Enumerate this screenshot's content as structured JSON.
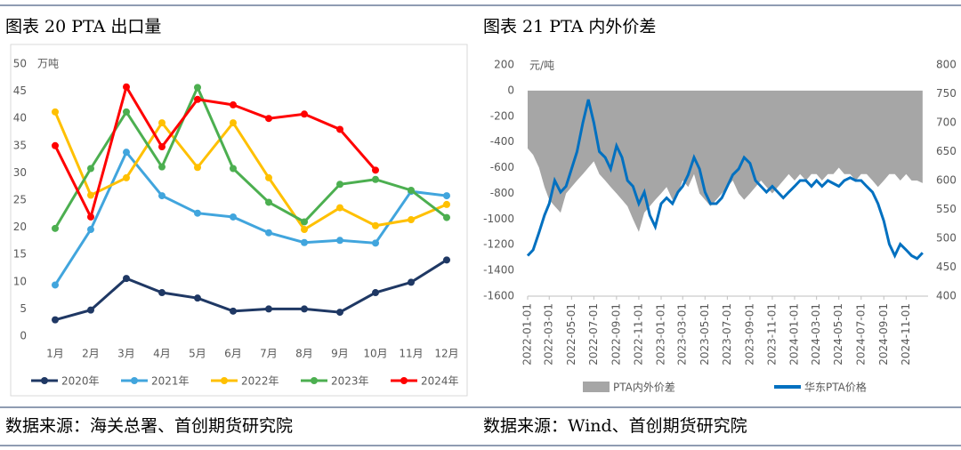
{
  "chart_data": [
    {
      "type": "line",
      "title": "图表 20 PTA 出口量",
      "y_label": "万吨",
      "source": "数据来源：海关总署、首创期货研究院",
      "categories": [
        "1月",
        "2月",
        "3月",
        "4月",
        "5月",
        "6月",
        "7月",
        "8月",
        "9月",
        "10月",
        "11月",
        "12月"
      ],
      "ylim": [
        0,
        50
      ],
      "yticks": [
        0,
        5,
        10,
        15,
        20,
        25,
        30,
        35,
        40,
        45,
        50
      ],
      "grid": false,
      "series": [
        {
          "name": "2020年",
          "color": "#1f3864",
          "values": [
            3.0,
            4.8,
            10.6,
            8.0,
            7.0,
            4.6,
            5.0,
            5.0,
            4.4,
            8.0,
            9.9,
            14.0
          ]
        },
        {
          "name": "2021年",
          "color": "#41a5dd",
          "values": [
            9.4,
            19.6,
            33.8,
            25.8,
            22.6,
            21.9,
            19.0,
            17.2,
            17.6,
            17.1,
            26.6,
            25.8
          ]
        },
        {
          "name": "2022年",
          "color": "#ffc000",
          "values": [
            41.2,
            25.9,
            29.1,
            39.2,
            31.0,
            39.2,
            29.1,
            19.6,
            23.6,
            20.3,
            21.4,
            24.2
          ]
        },
        {
          "name": "2023年",
          "color": "#4caf50",
          "values": [
            19.8,
            30.8,
            41.2,
            31.1,
            45.7,
            30.8,
            24.6,
            21.0,
            27.9,
            28.8,
            26.8,
            21.8
          ]
        },
        {
          "name": "2024年",
          "color": "#ff0000",
          "values": [
            35.0,
            21.9,
            45.8,
            34.8,
            43.5,
            42.5,
            40.0,
            40.8,
            38.0,
            30.5,
            null,
            null
          ]
        }
      ]
    },
    {
      "type": "area_line",
      "title": "图表 21 PTA 内外价差",
      "y_label": "元/吨",
      "source": "数据来源：Wind、首创期货研究院",
      "x": [
        "2022-01-01",
        "2022-01-16",
        "2022-02-01",
        "2022-02-16",
        "2022-03-01",
        "2022-03-16",
        "2022-04-01",
        "2022-04-16",
        "2022-05-01",
        "2022-05-16",
        "2022-06-01",
        "2022-06-16",
        "2022-07-01",
        "2022-07-16",
        "2022-08-01",
        "2022-08-16",
        "2022-09-01",
        "2022-09-16",
        "2022-10-01",
        "2022-10-16",
        "2022-11-01",
        "2022-11-16",
        "2022-12-01",
        "2022-12-16",
        "2023-01-01",
        "2023-01-16",
        "2023-02-01",
        "2023-02-16",
        "2023-03-01",
        "2023-03-16",
        "2023-04-01",
        "2023-04-16",
        "2023-05-01",
        "2023-05-16",
        "2023-06-01",
        "2023-06-16",
        "2023-07-01",
        "2023-07-16",
        "2023-08-01",
        "2023-08-16",
        "2023-09-01",
        "2023-09-16",
        "2023-10-01",
        "2023-10-16",
        "2023-11-01",
        "2023-11-16",
        "2023-12-01",
        "2023-12-16",
        "2024-01-01",
        "2024-01-16",
        "2024-02-01",
        "2024-02-16",
        "2024-03-01",
        "2024-03-16",
        "2024-04-01",
        "2024-04-16",
        "2024-05-01",
        "2024-05-16",
        "2024-06-01",
        "2024-06-16",
        "2024-07-01",
        "2024-07-16",
        "2024-08-01",
        "2024-08-16",
        "2024-09-01",
        "2024-09-16",
        "2024-10-01",
        "2024-10-16",
        "2024-11-01",
        "2024-11-16",
        "2024-12-01",
        "2024-12-16"
      ],
      "xlim": [
        "2022-01-01",
        "2024-12-31"
      ],
      "xticks": [
        "2022-01-01",
        "2022-03-01",
        "2022-05-01",
        "2022-07-01",
        "2022-09-01",
        "2022-11-01",
        "2023-01-01",
        "2023-03-01",
        "2023-05-01",
        "2023-07-01",
        "2023-09-01",
        "2023-11-01",
        "2024-01-01",
        "2024-03-01",
        "2024-05-01",
        "2024-07-01",
        "2024-09-01",
        "2024-11-01"
      ],
      "ylim": [
        -1600,
        200
      ],
      "yticks": [
        -1600,
        -1400,
        -1200,
        -1000,
        -800,
        -600,
        -400,
        -200,
        0,
        200
      ],
      "y2lim": [
        400,
        800
      ],
      "y2ticks": [
        400,
        450,
        500,
        550,
        600,
        650,
        700,
        750,
        800
      ],
      "series": [
        {
          "name": "PTA内外价差",
          "color": "#a6a6a6",
          "values": [
            -450,
            -500,
            -600,
            -750,
            -850,
            -900,
            -950,
            -800,
            -750,
            -700,
            -650,
            -600,
            -550,
            -650,
            -700,
            -750,
            -800,
            -850,
            -900,
            -1000,
            -1100,
            -950,
            -900,
            -850,
            -800,
            -750,
            -850,
            -800,
            -700,
            -750,
            -650,
            -800,
            -850,
            -900,
            -850,
            -800,
            -750,
            -700,
            -800,
            -850,
            -800,
            -750,
            -700,
            -750,
            -800,
            -750,
            -700,
            -650,
            -700,
            -650,
            -700,
            -650,
            -650,
            -700,
            -650,
            -650,
            -600,
            -650,
            -650,
            -700,
            -650,
            -650,
            -700,
            -750,
            -700,
            -650,
            -650,
            -700,
            -650,
            -700,
            -700,
            -720
          ]
        },
        {
          "name": "华东PTA价格",
          "color": "#0070c0",
          "axis": "y2",
          "values": [
            470,
            480,
            510,
            540,
            560,
            600,
            580,
            590,
            620,
            650,
            700,
            740,
            700,
            650,
            640,
            620,
            660,
            640,
            600,
            590,
            560,
            580,
            540,
            520,
            560,
            570,
            560,
            580,
            590,
            610,
            640,
            620,
            580,
            560,
            560,
            570,
            590,
            610,
            620,
            640,
            630,
            600,
            590,
            580,
            590,
            580,
            570,
            580,
            590,
            600,
            600,
            590,
            600,
            590,
            600,
            595,
            590,
            600,
            605,
            600,
            600,
            590,
            580,
            560,
            530,
            490,
            470,
            490,
            480,
            470,
            465,
            475
          ]
        }
      ]
    }
  ]
}
